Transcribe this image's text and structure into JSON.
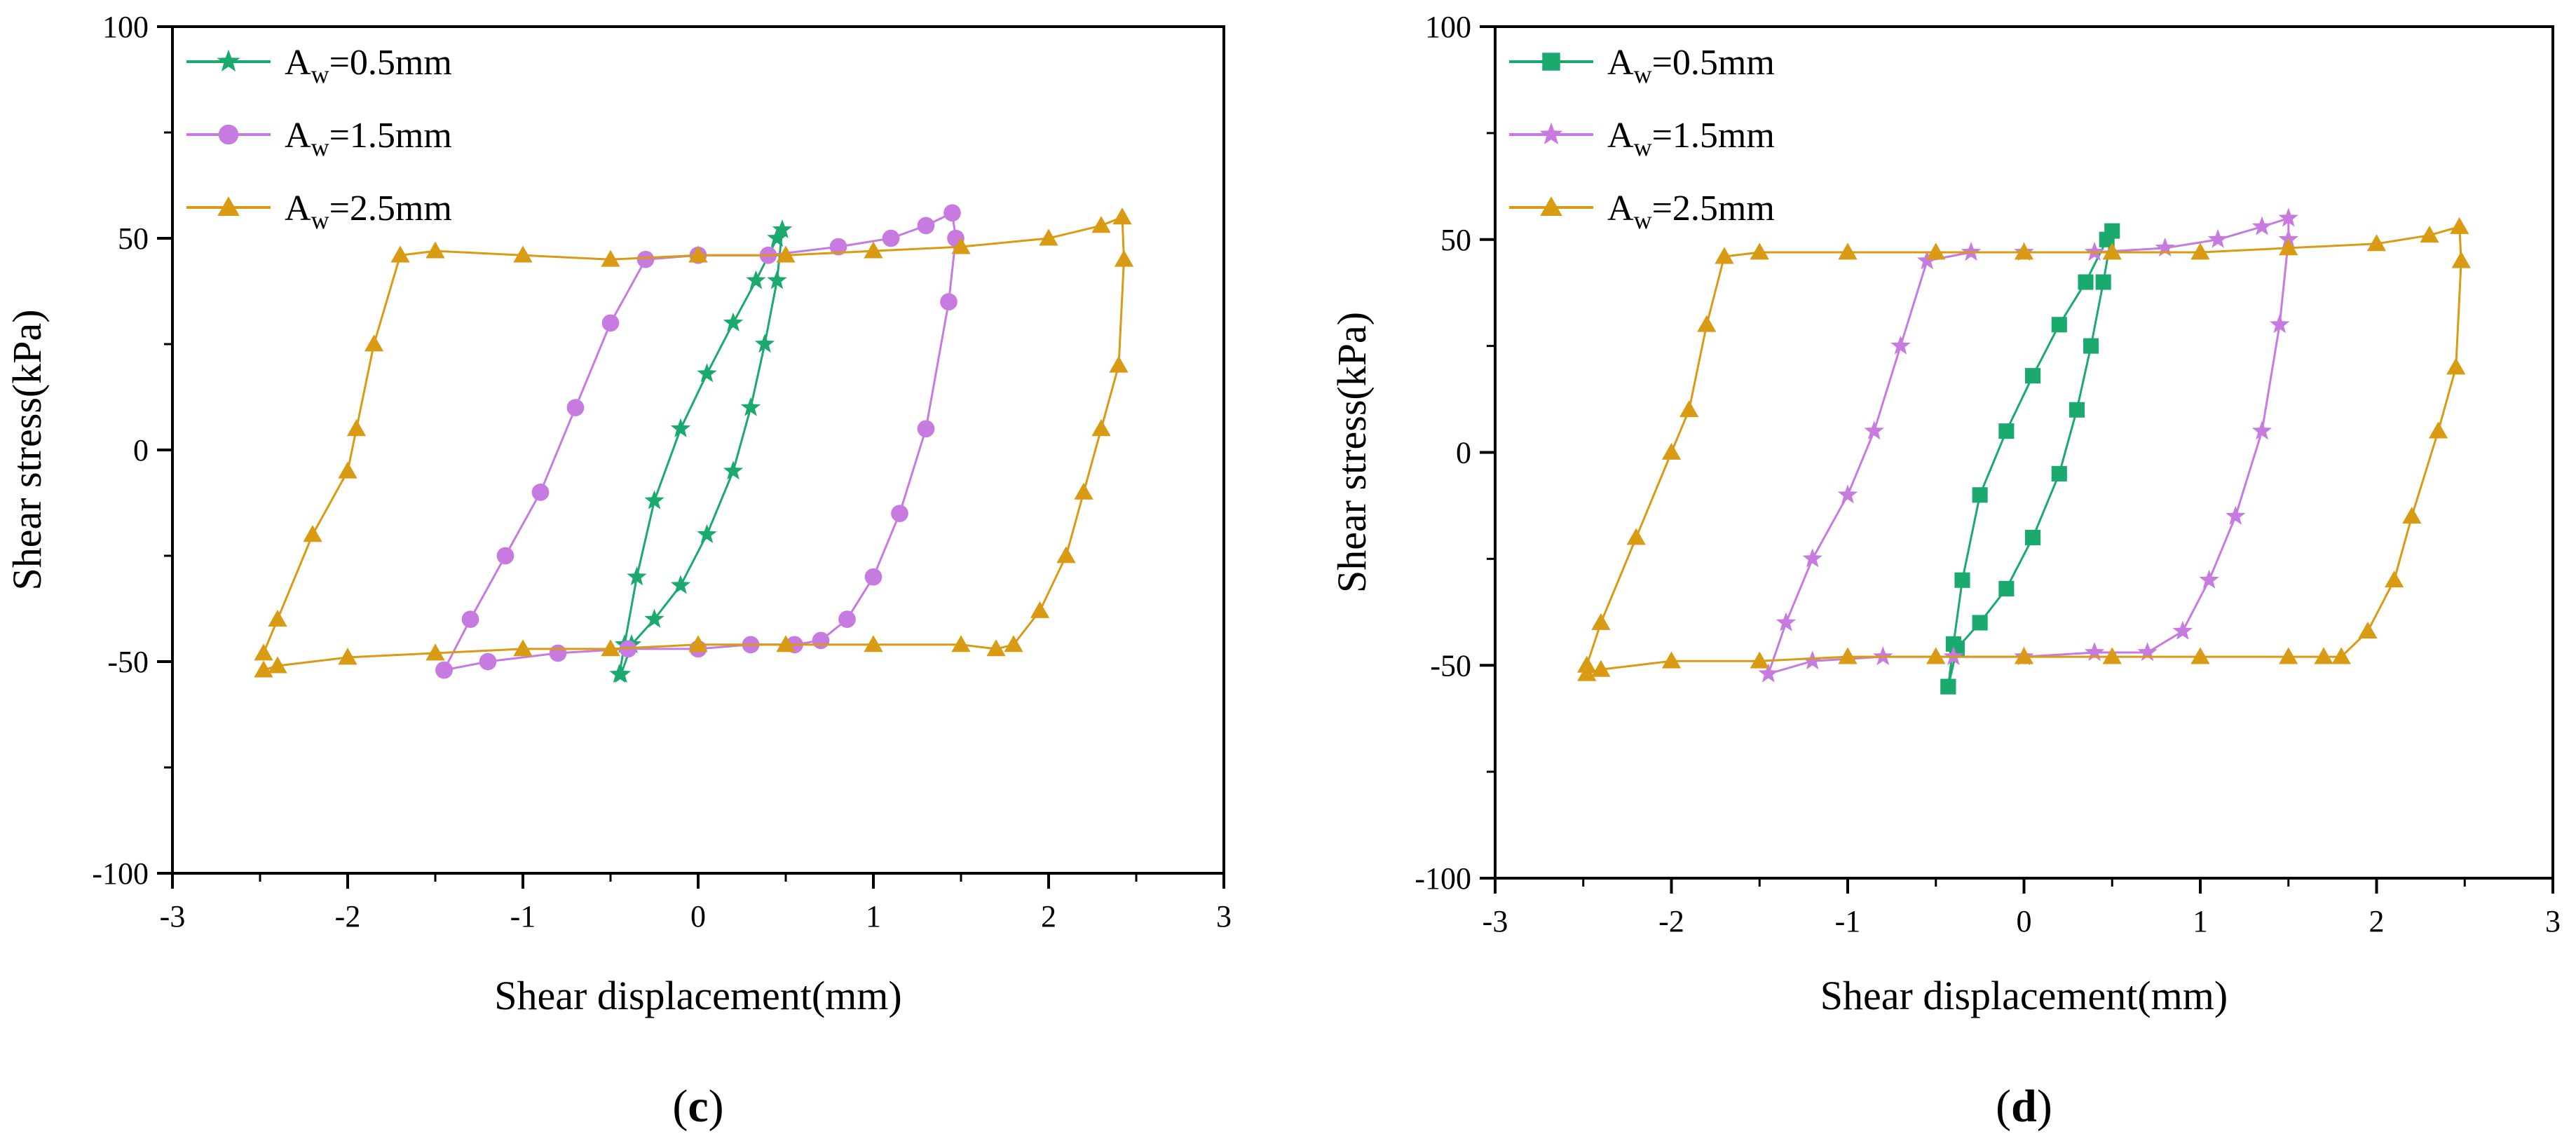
{
  "colors": {
    "green": "#1AAA6E",
    "purple": "#C77BE0",
    "orange": "#D99A14",
    "axis": "#000000"
  },
  "chart_data": [
    {
      "type": "scatter",
      "panel_label": "c",
      "xlabel": "Shear displacement(mm)",
      "ylabel": "Shear stress(kPa)",
      "xlim": [
        -3,
        3
      ],
      "ylim": [
        -100,
        100
      ],
      "xticks": [
        "-3",
        "-2",
        "-1",
        "0",
        "1",
        "2",
        "3"
      ],
      "yticks": [
        "100",
        "50",
        "0",
        "-50",
        "-100"
      ],
      "legend_position": "top-left",
      "series": [
        {
          "name": "A_w=0.5mm",
          "legend_main": "A",
          "legend_sub": "w",
          "legend_rest": "=0.5mm",
          "marker": "star",
          "color": "#1AAA6E",
          "x": [
            -0.45,
            -0.42,
            -0.35,
            -0.25,
            -0.1,
            0.05,
            0.2,
            0.33,
            0.45,
            0.48,
            0.45,
            0.38,
            0.3,
            0.2,
            0.05,
            -0.1,
            -0.25,
            -0.38,
            -0.44
          ],
          "y": [
            -53,
            -46,
            -30,
            -12,
            5,
            18,
            30,
            40,
            50,
            52,
            40,
            25,
            10,
            -5,
            -20,
            -32,
            -40,
            -46,
            -53
          ]
        },
        {
          "name": "A_w=1.5mm",
          "legend_main": "A",
          "legend_sub": "w",
          "legend_rest": "=1.5mm",
          "marker": "circle",
          "color": "#C77BE0",
          "x": [
            -1.45,
            -1.3,
            -1.1,
            -0.9,
            -0.7,
            -0.5,
            -0.3,
            0,
            0.4,
            0.8,
            1.1,
            1.3,
            1.45,
            1.47,
            1.43,
            1.3,
            1.15,
            1.0,
            0.85,
            0.7,
            0.55,
            0.3,
            0,
            -0.4,
            -0.8,
            -1.2,
            -1.45
          ],
          "y": [
            -52,
            -40,
            -25,
            -10,
            10,
            30,
            45,
            46,
            46,
            48,
            50,
            53,
            56,
            50,
            35,
            5,
            -15,
            -30,
            -40,
            -45,
            -46,
            -46,
            -47,
            -47,
            -48,
            -50,
            -52
          ]
        },
        {
          "name": "A_w=2.5mm",
          "legend_main": "A",
          "legend_sub": "w",
          "legend_rest": "=2.5mm",
          "marker": "triangle",
          "color": "#D99A14",
          "x": [
            -2.48,
            -2.4,
            -2.2,
            -2.0,
            -1.95,
            -1.85,
            -1.7,
            -1.5,
            -1.0,
            -0.5,
            0,
            0.5,
            1.0,
            1.5,
            2.0,
            2.3,
            2.42,
            2.43,
            2.4,
            2.3,
            2.2,
            2.1,
            1.95,
            1.8,
            1.7,
            1.5,
            1.0,
            0.5,
            0,
            -0.5,
            -1.0,
            -1.5,
            -2.0,
            -2.4,
            -2.48
          ],
          "y": [
            -48,
            -40,
            -20,
            -5,
            5,
            25,
            46,
            47,
            46,
            45,
            46,
            46,
            47,
            48,
            50,
            53,
            55,
            45,
            20,
            5,
            -10,
            -25,
            -38,
            -46,
            -47,
            -46,
            -46,
            -46,
            -46,
            -47,
            -47,
            -48,
            -49,
            -51,
            -52
          ]
        }
      ]
    },
    {
      "type": "scatter",
      "panel_label": "d",
      "xlabel": "Shear displacement(mm)",
      "ylabel": "Shear stress(kPa)",
      "xlim": [
        -3,
        3
      ],
      "ylim": [
        -100,
        100
      ],
      "xticks": [
        "-3",
        "-2",
        "-1",
        "0",
        "1",
        "2",
        "3"
      ],
      "yticks": [
        "100",
        "50",
        "0",
        "-50",
        "-100"
      ],
      "legend_position": "top-left",
      "series": [
        {
          "name": "A_w=0.5mm",
          "legend_main": "A",
          "legend_sub": "w",
          "legend_rest": "=0.5mm",
          "marker": "square",
          "color": "#1AAA6E",
          "x": [
            -0.43,
            -0.4,
            -0.35,
            -0.25,
            -0.1,
            0.05,
            0.2,
            0.35,
            0.47,
            0.5,
            0.45,
            0.38,
            0.3,
            0.2,
            0.05,
            -0.1,
            -0.25,
            -0.38,
            -0.43
          ],
          "y": [
            -55,
            -45,
            -30,
            -10,
            5,
            18,
            30,
            40,
            50,
            52,
            40,
            25,
            10,
            -5,
            -20,
            -32,
            -40,
            -46,
            -55
          ]
        },
        {
          "name": "A_w=1.5mm",
          "legend_main": "A",
          "legend_sub": "w",
          "legend_rest": "=1.5mm",
          "marker": "star",
          "color": "#C77BE0",
          "x": [
            -1.45,
            -1.35,
            -1.2,
            -1.0,
            -0.85,
            -0.7,
            -0.55,
            -0.3,
            0,
            0.4,
            0.8,
            1.1,
            1.35,
            1.5,
            1.5,
            1.45,
            1.35,
            1.2,
            1.05,
            0.9,
            0.7,
            0.4,
            0,
            -0.4,
            -0.8,
            -1.2,
            -1.45
          ],
          "y": [
            -52,
            -40,
            -25,
            -10,
            5,
            25,
            45,
            47,
            47,
            47,
            48,
            50,
            53,
            55,
            50,
            30,
            5,
            -15,
            -30,
            -42,
            -47,
            -47,
            -48,
            -48,
            -48,
            -49,
            -52
          ]
        },
        {
          "name": "A_w=2.5mm",
          "legend_main": "A",
          "legend_sub": "w",
          "legend_rest": "=2.5mm",
          "marker": "triangle",
          "color": "#D99A14",
          "x": [
            -2.48,
            -2.4,
            -2.2,
            -2.0,
            -1.9,
            -1.8,
            -1.7,
            -1.5,
            -1.0,
            -0.5,
            0,
            0.5,
            1.0,
            1.5,
            2.0,
            2.3,
            2.47,
            2.48,
            2.45,
            2.35,
            2.2,
            2.1,
            1.95,
            1.8,
            1.7,
            1.5,
            1.0,
            0.5,
            0,
            -0.5,
            -1.0,
            -1.5,
            -2.0,
            -2.4,
            -2.48
          ],
          "y": [
            -50,
            -40,
            -20,
            0,
            10,
            30,
            46,
            47,
            47,
            47,
            47,
            47,
            47,
            48,
            49,
            51,
            53,
            45,
            20,
            5,
            -15,
            -30,
            -42,
            -48,
            -48,
            -48,
            -48,
            -48,
            -48,
            -48,
            -48,
            -49,
            -49,
            -51,
            -52
          ]
        }
      ]
    }
  ]
}
